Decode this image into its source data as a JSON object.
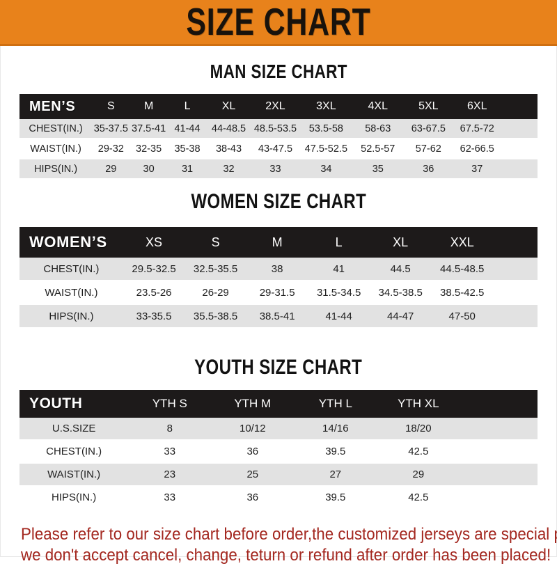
{
  "banner": {
    "title": "SIZE CHART"
  },
  "colors": {
    "banner_bg": "#e8821b",
    "header_bar_bg": "#1d1a1a",
    "row_stripe": "#e2e2e2",
    "note_text": "#a3271f"
  },
  "sections": [
    {
      "id": "men",
      "title": "MAN SIZE CHART",
      "header_label": "MEN’S",
      "columns": [
        "S",
        "M",
        "L",
        "XL",
        "2XL",
        "3XL",
        "4XL",
        "5XL",
        "6XL"
      ],
      "rows": [
        {
          "label": "CHEST(IN.)",
          "values": [
            "35-37.5",
            "37.5-41",
            "41-44",
            "44-48.5",
            "48.5-53.5",
            "53.5-58",
            "58-63",
            "63-67.5",
            "67.5-72"
          ]
        },
        {
          "label": "WAIST(IN.)",
          "values": [
            "29-32",
            "32-35",
            "35-38",
            "38-43",
            "43-47.5",
            "47.5-52.5",
            "52.5-57",
            "57-62",
            "62-66.5"
          ]
        },
        {
          "label": "HIPS(IN.)",
          "values": [
            "29",
            "30",
            "31",
            "32",
            "33",
            "34",
            "35",
            "36",
            "37"
          ]
        }
      ]
    },
    {
      "id": "women",
      "title": "WOMEN SIZE CHART",
      "header_label": "WOMEN’S",
      "columns": [
        "XS",
        "S",
        "M",
        "L",
        "XL",
        "XXL"
      ],
      "rows": [
        {
          "label": "CHEST(IN.)",
          "values": [
            "29.5-32.5",
            "32.5-35.5",
            "38",
            "41",
            "44.5",
            "44.5-48.5"
          ]
        },
        {
          "label": "WAIST(IN.)",
          "values": [
            "23.5-26",
            "26-29",
            "29-31.5",
            "31.5-34.5",
            "34.5-38.5",
            "38.5-42.5"
          ]
        },
        {
          "label": "HIPS(IN.)",
          "values": [
            "33-35.5",
            "35.5-38.5",
            "38.5-41",
            "41-44",
            "44-47",
            "47-50"
          ]
        }
      ]
    },
    {
      "id": "youth",
      "title": "YOUTH SIZE CHART",
      "header_label": "YOUTH",
      "columns": [
        "YTH S",
        "YTH M",
        "YTH L",
        "YTH XL"
      ],
      "rows": [
        {
          "label": "U.S.SIZE",
          "values": [
            "8",
            "10/12",
            "14/16",
            "18/20"
          ]
        },
        {
          "label": "CHEST(IN.)",
          "values": [
            "33",
            "36",
            "39.5",
            "42.5"
          ]
        },
        {
          "label": "WAIST(IN.)",
          "values": [
            "23",
            "25",
            "27",
            "29"
          ]
        },
        {
          "label": "HIPS(IN.)",
          "values": [
            "33",
            "36",
            "39.5",
            "42.5"
          ]
        }
      ]
    }
  ],
  "footer": {
    "lines": [
      "Please refer to our size chart before order,the customized jerseys are special products,",
      "we don't accept cancel, change, teturn or refund after order has been placed!"
    ]
  }
}
